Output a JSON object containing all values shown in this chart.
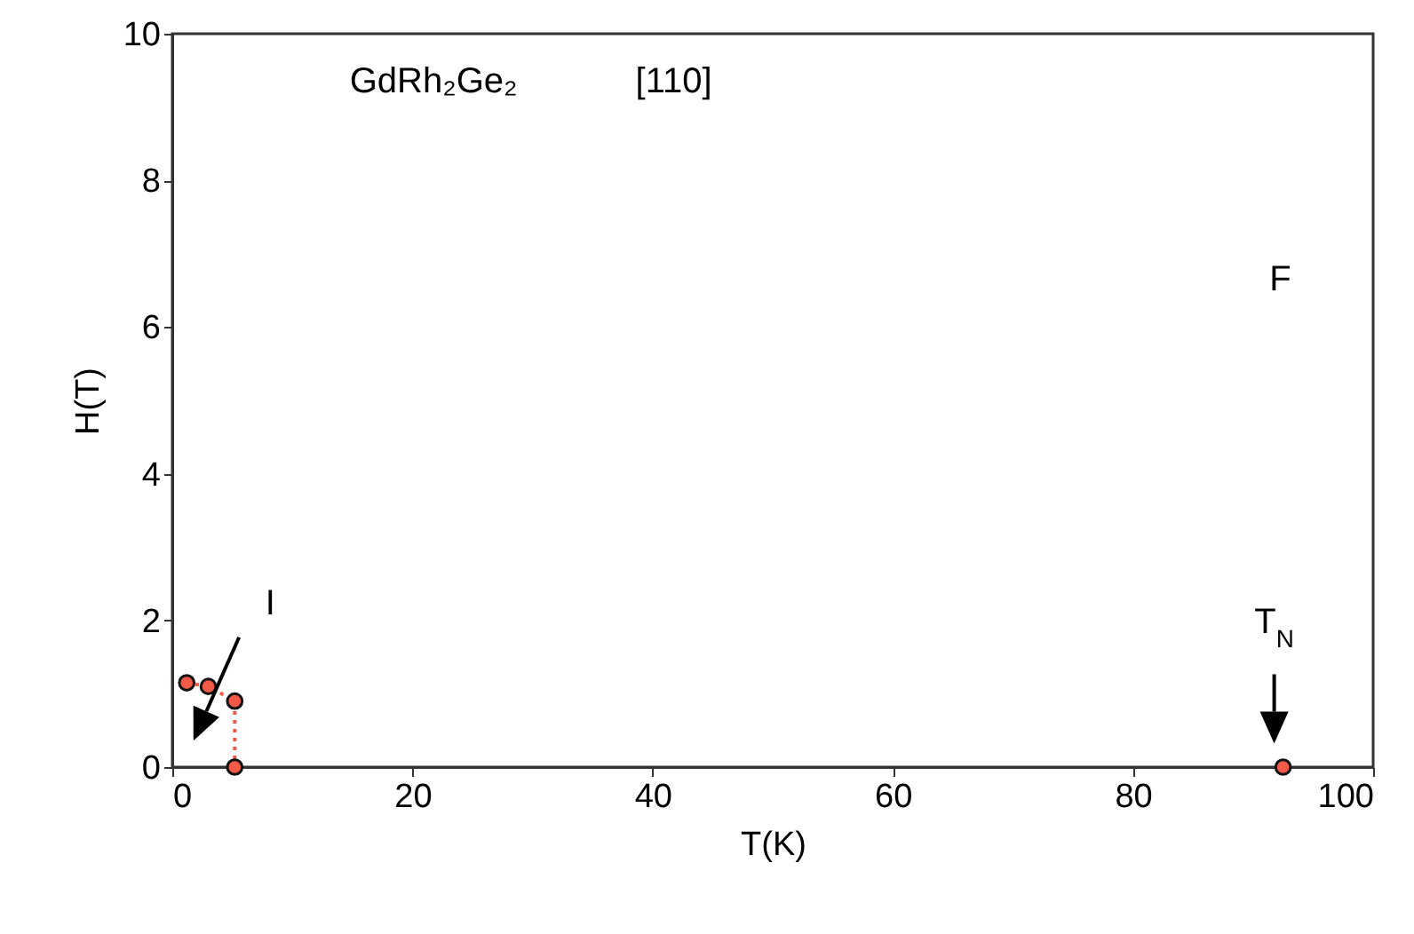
{
  "chart_data": {
    "type": "line",
    "xlabel": "T(K)",
    "ylabel": "H(T)",
    "xlim": [
      0,
      100
    ],
    "ylim": [
      0,
      10
    ],
    "xticks": [
      0,
      20,
      40,
      60,
      80,
      100
    ],
    "yticks": [
      0,
      2,
      4,
      6,
      8,
      10
    ],
    "grid": false,
    "marker": "circle",
    "line_style": "dotted",
    "series": [
      {
        "color": "#f05a46",
        "x": [
          1.2,
          3,
          5.2,
          5.2
        ],
        "values": [
          1.15,
          1.1,
          0.9,
          0
        ]
      },
      {
        "type": "scatter",
        "color": "#f05a46",
        "x": [
          92.5
        ],
        "values": [
          0
        ]
      }
    ],
    "annotations": [
      "GdRh₂Ge₂",
      "[110]",
      "F",
      "I",
      {
        "text": "T$_{N}$",
        "x": 92.5,
        "y": 0.2
      }
    ]
  }
}
